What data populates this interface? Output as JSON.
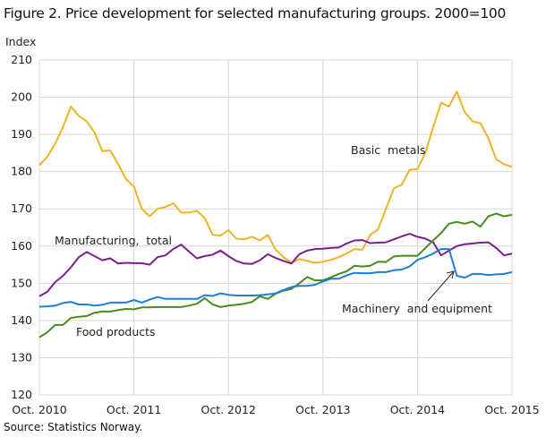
{
  "chart_data": {
    "type": "line",
    "title": "Figure 2. Price development for selected manufacturing groups. 2000=100",
    "ylabel": "Index",
    "xlabel": "",
    "ylim": [
      120,
      210
    ],
    "yticks": [
      120,
      130,
      140,
      150,
      160,
      170,
      180,
      190,
      200,
      210
    ],
    "x_start": "Oct. 2010",
    "x_end": "Oct. 2015",
    "frequency": "monthly",
    "xticks": [
      "Oct. 2010",
      "Oct. 2011",
      "Oct. 2012",
      "Oct. 2013",
      "Oct. 2014",
      "Oct. 2015"
    ],
    "grid": true,
    "series": [
      {
        "name": "Basic  metals",
        "color": "#f0b323",
        "values": [
          181.7,
          184,
          187.5,
          192,
          197.5,
          195,
          193.5,
          190.5,
          185.5,
          185.7,
          182,
          178,
          176,
          170,
          168,
          170,
          170.5,
          171.5,
          169,
          169,
          169.5,
          167.5,
          163,
          162.8,
          164.3,
          162,
          161.8,
          162.5,
          161.5,
          163,
          159,
          157,
          155.5,
          156.5,
          156,
          155.5,
          155.8,
          156.3,
          157,
          158,
          159.2,
          159,
          163,
          164.5,
          170,
          175.5,
          176.5,
          180.5,
          180.7,
          185,
          192,
          198.5,
          197.5,
          201.5,
          196,
          193.5,
          193,
          189,
          183.3,
          182,
          181.3
        ]
      },
      {
        "name": "Manufacturing,  total",
        "color": "#7b1f8c",
        "values": [
          146.5,
          147.7,
          150.3,
          152,
          154.3,
          157,
          158.4,
          157.3,
          156.2,
          156.7,
          155.3,
          155.5,
          155.4,
          155.4,
          155,
          157,
          157.5,
          159.2,
          160.4,
          158.5,
          156.7,
          157.3,
          157.7,
          158.8,
          157.3,
          156,
          155.3,
          155.2,
          156.2,
          157.8,
          156.8,
          156,
          155.3,
          157.8,
          158.8,
          159.2,
          159.3,
          159.5,
          159.6,
          160.7,
          161.5,
          161.6,
          160.8,
          160.9,
          161,
          161.8,
          162.6,
          163.3,
          162.5,
          162,
          161,
          157.5,
          158.8,
          160,
          160.5,
          160.7,
          160.9,
          161,
          159.5,
          157.5,
          158
        ]
      },
      {
        "name": "Machinery  and equipment",
        "color": "#1a7fd6",
        "values": [
          143.7,
          143.8,
          144,
          144.7,
          145,
          144.3,
          144.3,
          144,
          144.2,
          144.8,
          144.8,
          144.8,
          145.5,
          144.8,
          145.6,
          146.3,
          145.8,
          145.8,
          145.8,
          145.8,
          145.8,
          146.8,
          146.6,
          147.3,
          146.9,
          146.7,
          146.7,
          146.7,
          146.8,
          147,
          147.3,
          148.2,
          149,
          149.3,
          149.3,
          149.6,
          150.5,
          151.2,
          151.2,
          152.1,
          152.8,
          152.7,
          152.7,
          153,
          153,
          153.5,
          153.7,
          154.5,
          156.3,
          157,
          158,
          159.2,
          159.2,
          152,
          151.5,
          152.5,
          152.5,
          152.2,
          152.4,
          152.5,
          153
        ]
      },
      {
        "name": "Food products",
        "color": "#4a8c1c",
        "values": [
          135.5,
          136.8,
          138.8,
          138.8,
          140.7,
          141,
          141.2,
          142.1,
          142.4,
          142.4,
          142.8,
          143.1,
          143,
          143.5,
          143.5,
          143.6,
          143.6,
          143.6,
          143.6,
          144,
          144.5,
          146,
          144.3,
          143.6,
          144,
          144.2,
          144.5,
          145,
          146.5,
          145.8,
          147.2,
          148,
          148.5,
          150,
          151.7,
          150.8,
          150.8,
          151.6,
          152.5,
          153.2,
          154.7,
          154.5,
          154.7,
          155.8,
          155.7,
          157.2,
          157.4,
          157.4,
          157.4,
          159.5,
          161.5,
          163.5,
          166,
          166.5,
          166,
          166.6,
          165.2,
          168,
          168.7,
          168,
          168.4
        ]
      }
    ]
  },
  "source": "Source: Statistics Norway."
}
